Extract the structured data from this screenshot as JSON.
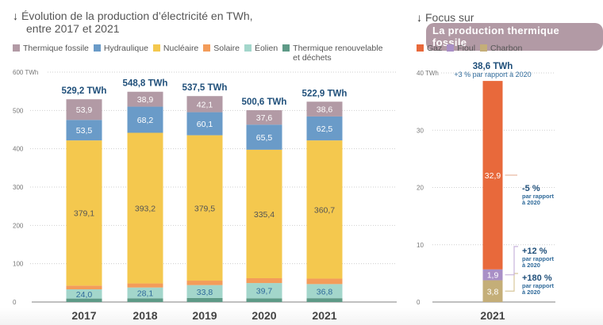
{
  "left": {
    "title_line1": "Évolution de la production d’électricité en TWh,",
    "title_line2": "entre 2017 et 2021",
    "arrow": "↓"
  },
  "right": {
    "focus_label": "Focus sur",
    "pill": "La production thermique fossile",
    "arrow": "↓"
  },
  "colors": {
    "thermique_fossile": "#b29aa5",
    "hydraulique": "#6a9bc8",
    "nucleaire": "#f4c84e",
    "solaire": "#f39c5a",
    "eolien": "#a3d6cb",
    "thermique_renouvelable": "#5e9a87",
    "gaz": "#e8693b",
    "fioul": "#a98fc6",
    "charbon": "#c4ae78",
    "total_text": "#1f4f7a"
  },
  "chart_data": [
    {
      "type": "bar",
      "stacked": true,
      "title": "Évolution de la production d’électricité en TWh, entre 2017 et 2021",
      "xlabel": "",
      "ylabel": "TWh",
      "ylim": [
        0,
        600
      ],
      "yticks": [
        0,
        100,
        200,
        300,
        400,
        500,
        600
      ],
      "ytick_labels": [
        "0",
        "100",
        "200",
        "300",
        "400",
        "500",
        "600 TWh"
      ],
      "grid": true,
      "legend_position": "top-left",
      "categories": [
        "2017",
        "2018",
        "2019",
        "2020",
        "2021"
      ],
      "totals": [
        529.2,
        548.8,
        537.5,
        500.6,
        522.9
      ],
      "total_labels": [
        "529,2 TWh",
        "548,8 TWh",
        "537,5 TWh",
        "500,6 TWh",
        "522,9 TWh"
      ],
      "series": [
        {
          "key": "thermique_renouvelable",
          "name": "Thermique renouvelable et déchets",
          "legend_line1": "Thermique renouvelable",
          "legend_line2": "et déchets",
          "values": [
            9.1,
            9.8,
            10.4,
            9.8,
            10.0
          ],
          "labels": [
            null,
            null,
            null,
            null,
            null
          ]
        },
        {
          "key": "eolien",
          "name": "Éolien",
          "values": [
            24.0,
            28.1,
            33.8,
            39.7,
            36.8
          ],
          "labels": [
            "24,0",
            "28,1",
            "33,8",
            "39,7",
            "36,8"
          ]
        },
        {
          "key": "solaire",
          "name": "Solaire",
          "values": [
            9.6,
            10.6,
            11.6,
            12.6,
            14.3
          ],
          "labels": [
            null,
            null,
            null,
            null,
            null
          ]
        },
        {
          "key": "nucleaire",
          "name": "Nucléaire",
          "values": [
            379.1,
            393.2,
            379.5,
            335.4,
            360.7
          ],
          "labels": [
            "379,1",
            "393,2",
            "379,5",
            "335,4",
            "360,7"
          ]
        },
        {
          "key": "hydraulique",
          "name": "Hydraulique",
          "values": [
            53.5,
            68.2,
            60.1,
            65.5,
            62.5
          ],
          "labels": [
            "53,5",
            "68,2",
            "60,1",
            "65,5",
            "62,5"
          ]
        },
        {
          "key": "thermique_fossile",
          "name": "Thermique fossile",
          "values": [
            53.9,
            38.9,
            42.1,
            37.6,
            38.6
          ],
          "labels": [
            "53,9",
            "38,9",
            "42,1",
            "37,6",
            "38,6"
          ]
        }
      ],
      "legend_order": [
        "thermique_fossile",
        "hydraulique",
        "nucleaire",
        "solaire",
        "eolien",
        "thermique_renouvelable"
      ]
    },
    {
      "type": "bar",
      "stacked": true,
      "title": "Focus sur La production thermique fossile",
      "xlabel": "",
      "ylabel": "TWh",
      "ylim": [
        0,
        40
      ],
      "yticks": [
        0,
        10,
        20,
        30,
        40
      ],
      "ytick_labels": [
        "0",
        "10",
        "20",
        "30",
        "40 TWh"
      ],
      "grid": true,
      "legend_position": "top-left",
      "categories": [
        "2021"
      ],
      "total": 38.6,
      "total_label": "38,6 TWh",
      "total_sublabel": "+3 % par rapport à 2020",
      "series": [
        {
          "key": "charbon",
          "name": "Charbon",
          "values": [
            3.8
          ],
          "label": "3,8",
          "change": "+180 %",
          "change_sub1": "par rapport",
          "change_sub2": "à 2020"
        },
        {
          "key": "fioul",
          "name": "Fioul",
          "values": [
            1.9
          ],
          "label": "1,9",
          "change": "+12 %",
          "change_sub1": "par rapport",
          "change_sub2": "à 2020"
        },
        {
          "key": "gaz",
          "name": "Gaz",
          "values": [
            32.9
          ],
          "label": "32,9",
          "change": "-5 %",
          "change_sub1": "par rapport",
          "change_sub2": "à 2020"
        }
      ],
      "legend_order": [
        "gaz",
        "fioul",
        "charbon"
      ]
    }
  ]
}
